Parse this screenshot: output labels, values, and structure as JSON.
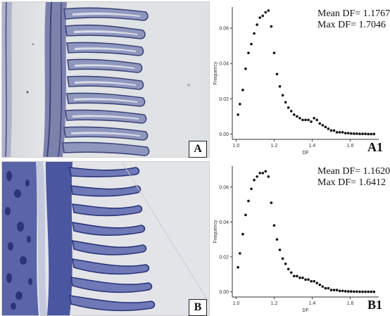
{
  "panels": [
    {
      "id": "A",
      "label": "A",
      "kind": "micrograph",
      "description_colors": {
        "background": "#dcdfe2",
        "tissue": "#6a6fa6",
        "tissue_dark": "#3d4478",
        "cartilage": "#9aa0c4"
      }
    },
    {
      "id": "B",
      "label": "B",
      "kind": "micrograph",
      "description_colors": {
        "background": "#e6e7ea",
        "tissue": "#4f5aa3",
        "tissue_dark": "#2a3478",
        "cartilage": "#7b86bf"
      }
    }
  ],
  "chart_data": [
    {
      "type": "scatter",
      "panel_label": "A1",
      "xlabel": "DF",
      "ylabel": "Frequency",
      "xlim": [
        0.98,
        1.75
      ],
      "ylim": [
        -0.003,
        0.072
      ],
      "xticks": [
        1.0,
        1.2,
        1.4,
        1.6
      ],
      "xtick_labels": [
        "1.0",
        "1.2",
        "1.4",
        "1.6"
      ],
      "yticks": [
        0.0,
        0.02,
        0.04,
        0.06
      ],
      "ytick_labels": [
        "0.00",
        "0.02",
        "0.04",
        "0.06"
      ],
      "stats": [
        "Mean DF= 1.1767",
        "Max DF= 1.7046"
      ],
      "marker_color": "#111111",
      "x": [
        1.01,
        1.02,
        1.035,
        1.05,
        1.065,
        1.08,
        1.095,
        1.11,
        1.125,
        1.14,
        1.155,
        1.17,
        1.185,
        1.2,
        1.215,
        1.23,
        1.245,
        1.26,
        1.275,
        1.29,
        1.305,
        1.32,
        1.335,
        1.35,
        1.365,
        1.38,
        1.395,
        1.41,
        1.425,
        1.44,
        1.455,
        1.47,
        1.485,
        1.5,
        1.515,
        1.53,
        1.545,
        1.56,
        1.575,
        1.59,
        1.605,
        1.62,
        1.635,
        1.65,
        1.665,
        1.68,
        1.695,
        1.71,
        1.725
      ],
      "y": [
        0.011,
        0.017,
        0.025,
        0.037,
        0.046,
        0.051,
        0.057,
        0.062,
        0.066,
        0.067,
        0.069,
        0.07,
        0.061,
        0.046,
        0.034,
        0.027,
        0.022,
        0.018,
        0.015,
        0.013,
        0.011,
        0.01,
        0.009,
        0.008,
        0.008,
        0.008,
        0.007,
        0.009,
        0.008,
        0.006,
        0.005,
        0.004,
        0.003,
        0.002,
        0.002,
        0.001,
        0.001,
        0.001,
        0.0005,
        0.0005,
        0.0003,
        0.0002,
        0.0002,
        0.0001,
        0.0001,
        0.0001,
        0.0,
        0.0,
        0.0
      ]
    },
    {
      "type": "scatter",
      "panel_label": "B1",
      "xlabel": "DF",
      "ylabel": "Frequency",
      "xlim": [
        0.98,
        1.75
      ],
      "ylim": [
        -0.003,
        0.072
      ],
      "xticks": [
        1.0,
        1.2,
        1.4,
        1.6
      ],
      "xtick_labels": [
        "1.0",
        "1.2",
        "1.4",
        "1.6"
      ],
      "yticks": [
        0.0,
        0.02,
        0.04,
        0.06
      ],
      "ytick_labels": [
        "0.00",
        "0.02",
        "0.04",
        "0.06"
      ],
      "stats": [
        "Mean DF= 1.1620",
        "Max DF= 1.6412"
      ],
      "marker_color": "#111111",
      "x": [
        1.01,
        1.02,
        1.035,
        1.05,
        1.065,
        1.08,
        1.095,
        1.11,
        1.125,
        1.14,
        1.155,
        1.17,
        1.185,
        1.2,
        1.215,
        1.23,
        1.245,
        1.26,
        1.275,
        1.29,
        1.305,
        1.32,
        1.335,
        1.35,
        1.365,
        1.38,
        1.395,
        1.41,
        1.425,
        1.44,
        1.455,
        1.47,
        1.485,
        1.5,
        1.515,
        1.53,
        1.545,
        1.56,
        1.575,
        1.59,
        1.605,
        1.62,
        1.635,
        1.65,
        1.665,
        1.68,
        1.695,
        1.71,
        1.725
      ],
      "y": [
        0.014,
        0.022,
        0.033,
        0.044,
        0.052,
        0.059,
        0.064,
        0.066,
        0.068,
        0.068,
        0.069,
        0.066,
        0.051,
        0.038,
        0.03,
        0.024,
        0.019,
        0.016,
        0.013,
        0.011,
        0.009,
        0.009,
        0.008,
        0.008,
        0.007,
        0.007,
        0.006,
        0.006,
        0.005,
        0.004,
        0.003,
        0.002,
        0.002,
        0.001,
        0.001,
        0.001,
        0.0005,
        0.0005,
        0.0003,
        0.0002,
        0.0002,
        0.0001,
        0.0001,
        0.0,
        0.0,
        0.0,
        0.0,
        0.0,
        0.0
      ]
    }
  ]
}
